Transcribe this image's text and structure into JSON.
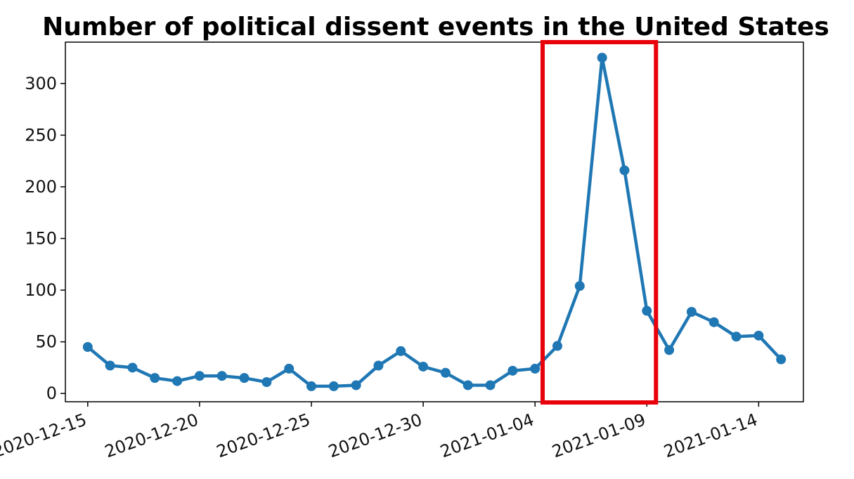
{
  "chart_data": {
    "type": "line",
    "title": "Number of political dissent events in the United States",
    "xlabel": "",
    "ylabel": "",
    "x": [
      "2020-12-15",
      "2020-12-16",
      "2020-12-17",
      "2020-12-18",
      "2020-12-19",
      "2020-12-20",
      "2020-12-21",
      "2020-12-22",
      "2020-12-23",
      "2020-12-24",
      "2020-12-25",
      "2020-12-26",
      "2020-12-27",
      "2020-12-28",
      "2020-12-29",
      "2020-12-30",
      "2020-12-31",
      "2021-01-01",
      "2021-01-02",
      "2021-01-03",
      "2021-01-04",
      "2021-01-05",
      "2021-01-06",
      "2021-01-07",
      "2021-01-08",
      "2021-01-09",
      "2021-01-10",
      "2021-01-11",
      "2021-01-12",
      "2021-01-13",
      "2021-01-14",
      "2021-01-15"
    ],
    "series": [
      {
        "values": [
          45,
          27,
          25,
          15,
          12,
          17,
          17,
          15,
          11,
          24,
          7,
          7,
          8,
          27,
          41,
          26,
          20,
          8,
          8,
          22,
          24,
          46,
          104,
          325,
          216,
          80,
          42,
          79,
          69,
          55,
          56,
          33
        ],
        "color": "#1f77b4"
      }
    ],
    "xticks": [
      "2020-12-15",
      "2020-12-20",
      "2020-12-25",
      "2020-12-30",
      "2021-01-04",
      "2021-01-09",
      "2021-01-14"
    ],
    "yticks": [
      0,
      50,
      100,
      150,
      200,
      250,
      300
    ],
    "xlim": [
      "2020-12-14",
      "2021-01-16"
    ],
    "ylim": [
      -8,
      340
    ],
    "grid": false,
    "legend": "none",
    "highlight": {
      "x_range": [
        "2021-01-05",
        "2021-01-09"
      ],
      "color": "#e8000b"
    }
  }
}
